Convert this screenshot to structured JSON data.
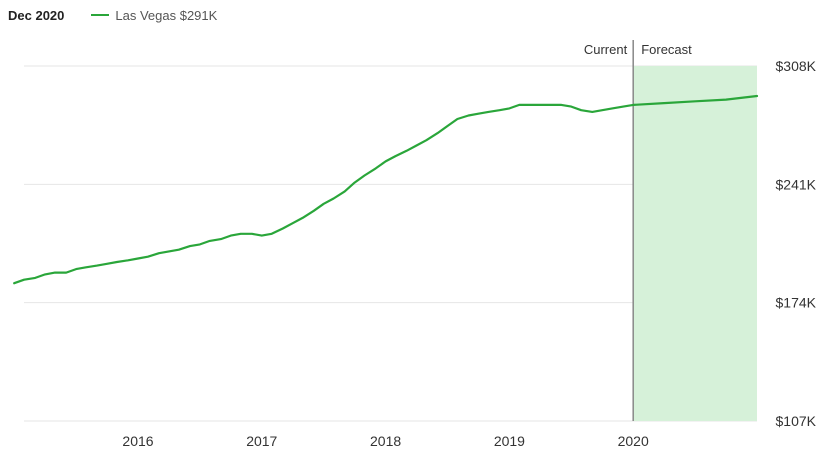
{
  "header": {
    "date_label": "Dec 2020",
    "legend_label": "Las Vegas $291K"
  },
  "colors": {
    "line": "#2aa63a",
    "forecast_fill": "#d6f1d9",
    "grid": "#e6e6e6",
    "divider": "#888888"
  },
  "chart_data": {
    "type": "line",
    "series": [
      {
        "name": "Las Vegas",
        "color": "#2aa63a",
        "points": [
          [
            2015.0,
            185
          ],
          [
            2015.08,
            187
          ],
          [
            2015.17,
            188
          ],
          [
            2015.25,
            190
          ],
          [
            2015.33,
            191
          ],
          [
            2015.42,
            191
          ],
          [
            2015.5,
            193
          ],
          [
            2015.58,
            194
          ],
          [
            2015.67,
            195
          ],
          [
            2015.75,
            196
          ],
          [
            2015.83,
            197
          ],
          [
            2015.92,
            198
          ],
          [
            2016.0,
            199
          ],
          [
            2016.08,
            200
          ],
          [
            2016.17,
            202
          ],
          [
            2016.25,
            203
          ],
          [
            2016.33,
            204
          ],
          [
            2016.42,
            206
          ],
          [
            2016.5,
            207
          ],
          [
            2016.58,
            209
          ],
          [
            2016.67,
            210
          ],
          [
            2016.75,
            212
          ],
          [
            2016.83,
            213
          ],
          [
            2016.92,
            213
          ],
          [
            2017.0,
            212
          ],
          [
            2017.08,
            213
          ],
          [
            2017.17,
            216
          ],
          [
            2017.25,
            219
          ],
          [
            2017.33,
            222
          ],
          [
            2017.42,
            226
          ],
          [
            2017.5,
            230
          ],
          [
            2017.58,
            233
          ],
          [
            2017.67,
            237
          ],
          [
            2017.75,
            242
          ],
          [
            2017.83,
            246
          ],
          [
            2017.92,
            250
          ],
          [
            2018.0,
            254
          ],
          [
            2018.08,
            257
          ],
          [
            2018.17,
            260
          ],
          [
            2018.25,
            263
          ],
          [
            2018.33,
            266
          ],
          [
            2018.42,
            270
          ],
          [
            2018.5,
            274
          ],
          [
            2018.58,
            278
          ],
          [
            2018.67,
            280
          ],
          [
            2018.75,
            281
          ],
          [
            2018.83,
            282
          ],
          [
            2018.92,
            283
          ],
          [
            2019.0,
            284
          ],
          [
            2019.08,
            286
          ],
          [
            2019.17,
            286
          ],
          [
            2019.25,
            286
          ],
          [
            2019.33,
            286
          ],
          [
            2019.42,
            286
          ],
          [
            2019.5,
            285
          ],
          [
            2019.58,
            283
          ],
          [
            2019.67,
            282
          ],
          [
            2019.75,
            283
          ],
          [
            2019.83,
            284
          ],
          [
            2019.92,
            285
          ],
          [
            2020.0,
            286
          ],
          [
            2020.25,
            287
          ],
          [
            2020.5,
            288
          ],
          [
            2020.75,
            289
          ],
          [
            2021.0,
            291
          ]
        ]
      }
    ],
    "x_ticks": [
      {
        "value": 2016,
        "label": "2016"
      },
      {
        "value": 2017,
        "label": "2017"
      },
      {
        "value": 2018,
        "label": "2018"
      },
      {
        "value": 2019,
        "label": "2019"
      },
      {
        "value": 2020,
        "label": "2020"
      }
    ],
    "y_ticks": [
      {
        "value": 308,
        "label": "$308K"
      },
      {
        "value": 241,
        "label": "$241K"
      },
      {
        "value": 174,
        "label": "$174K"
      },
      {
        "value": 107,
        "label": "$107K"
      }
    ],
    "xlim": [
      2014.95,
      2021.0
    ],
    "ylim": [
      107,
      308
    ],
    "current_x": 2020.0,
    "current_label": "Current",
    "forecast_label": "Forecast",
    "grid": true,
    "legend_position": "top-left"
  }
}
